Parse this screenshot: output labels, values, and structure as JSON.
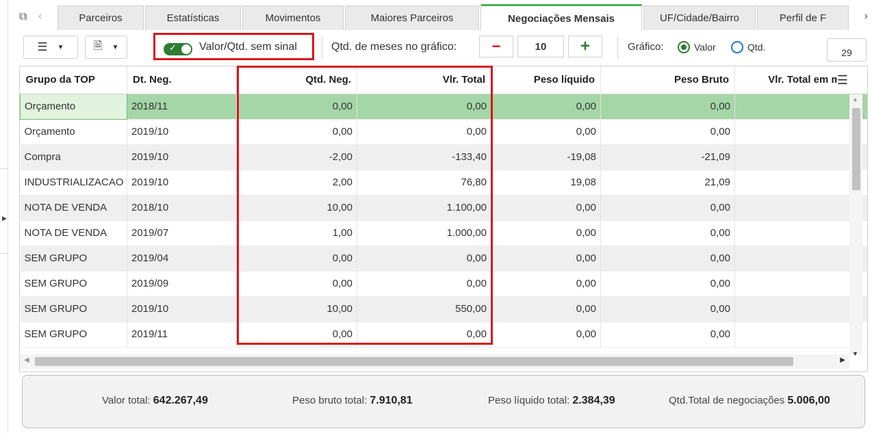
{
  "tabs": [
    "Parceiros",
    "Estatísticas",
    "Movimentos",
    "Maiores Parceiros",
    "Negociações Mensais",
    "UF/Cidade/Bairro",
    "Perfil de F"
  ],
  "active_tab": "Negociações Mensais",
  "toolbar": {
    "toggle_label": "Valor/Qtd. sem sinal",
    "months_label": "Qtd. de meses no gráfico:",
    "months_value": "10",
    "minus": "−",
    "plus": "+",
    "chart_label": "Gráfico:",
    "radio_valor": "Valor",
    "radio_qtd": "Qtd.",
    "page_value": "29"
  },
  "table": {
    "headers": [
      "Grupo da TOP",
      "Dt. Neg.",
      "Qtd. Neg.",
      "Vlr. Total",
      "Peso líquido",
      "Peso Bruto",
      "Vlr. Total em mo"
    ],
    "rows": [
      [
        "Orçamento",
        "2018/11",
        "0,00",
        "0,00",
        "0,00",
        "0,00",
        ""
      ],
      [
        "Orçamento",
        "2019/10",
        "0,00",
        "0,00",
        "0,00",
        "0,00",
        ""
      ],
      [
        "Compra",
        "2019/10",
        "-2,00",
        "-133,40",
        "-19,08",
        "-21,09",
        ""
      ],
      [
        "INDUSTRIALIZACAO",
        "2019/10",
        "2,00",
        "76,80",
        "19,08",
        "21,09",
        ""
      ],
      [
        "NOTA DE VENDA",
        "2018/10",
        "10,00",
        "1.100,00",
        "0,00",
        "0,00",
        ""
      ],
      [
        "NOTA DE VENDA",
        "2019/07",
        "1,00",
        "1.000,00",
        "0,00",
        "0,00",
        ""
      ],
      [
        "SEM GRUPO",
        "2019/04",
        "0,00",
        "0,00",
        "0,00",
        "0,00",
        ""
      ],
      [
        "SEM GRUPO",
        "2019/09",
        "0,00",
        "0,00",
        "0,00",
        "0,00",
        ""
      ],
      [
        "SEM GRUPO",
        "2019/10",
        "10,00",
        "550,00",
        "0,00",
        "0,00",
        ""
      ],
      [
        "SEM GRUPO",
        "2019/11",
        "0,00",
        "0,00",
        "0,00",
        "0,00",
        ""
      ]
    ]
  },
  "footer": {
    "valor_total_label": "Valor total:",
    "valor_total": "642.267,49",
    "peso_bruto_label": "Peso bruto total:",
    "peso_bruto": "7.910,81",
    "peso_liquido_label": "Peso líquido total:",
    "peso_liquido": "2.384,39",
    "qtd_label": "Qtd.Total de negociações",
    "qtd": "5.006,00"
  },
  "colors": {
    "accent": "#4caf50",
    "selected_row": "#a5d6a7",
    "highlight_box": "#d9141a"
  }
}
